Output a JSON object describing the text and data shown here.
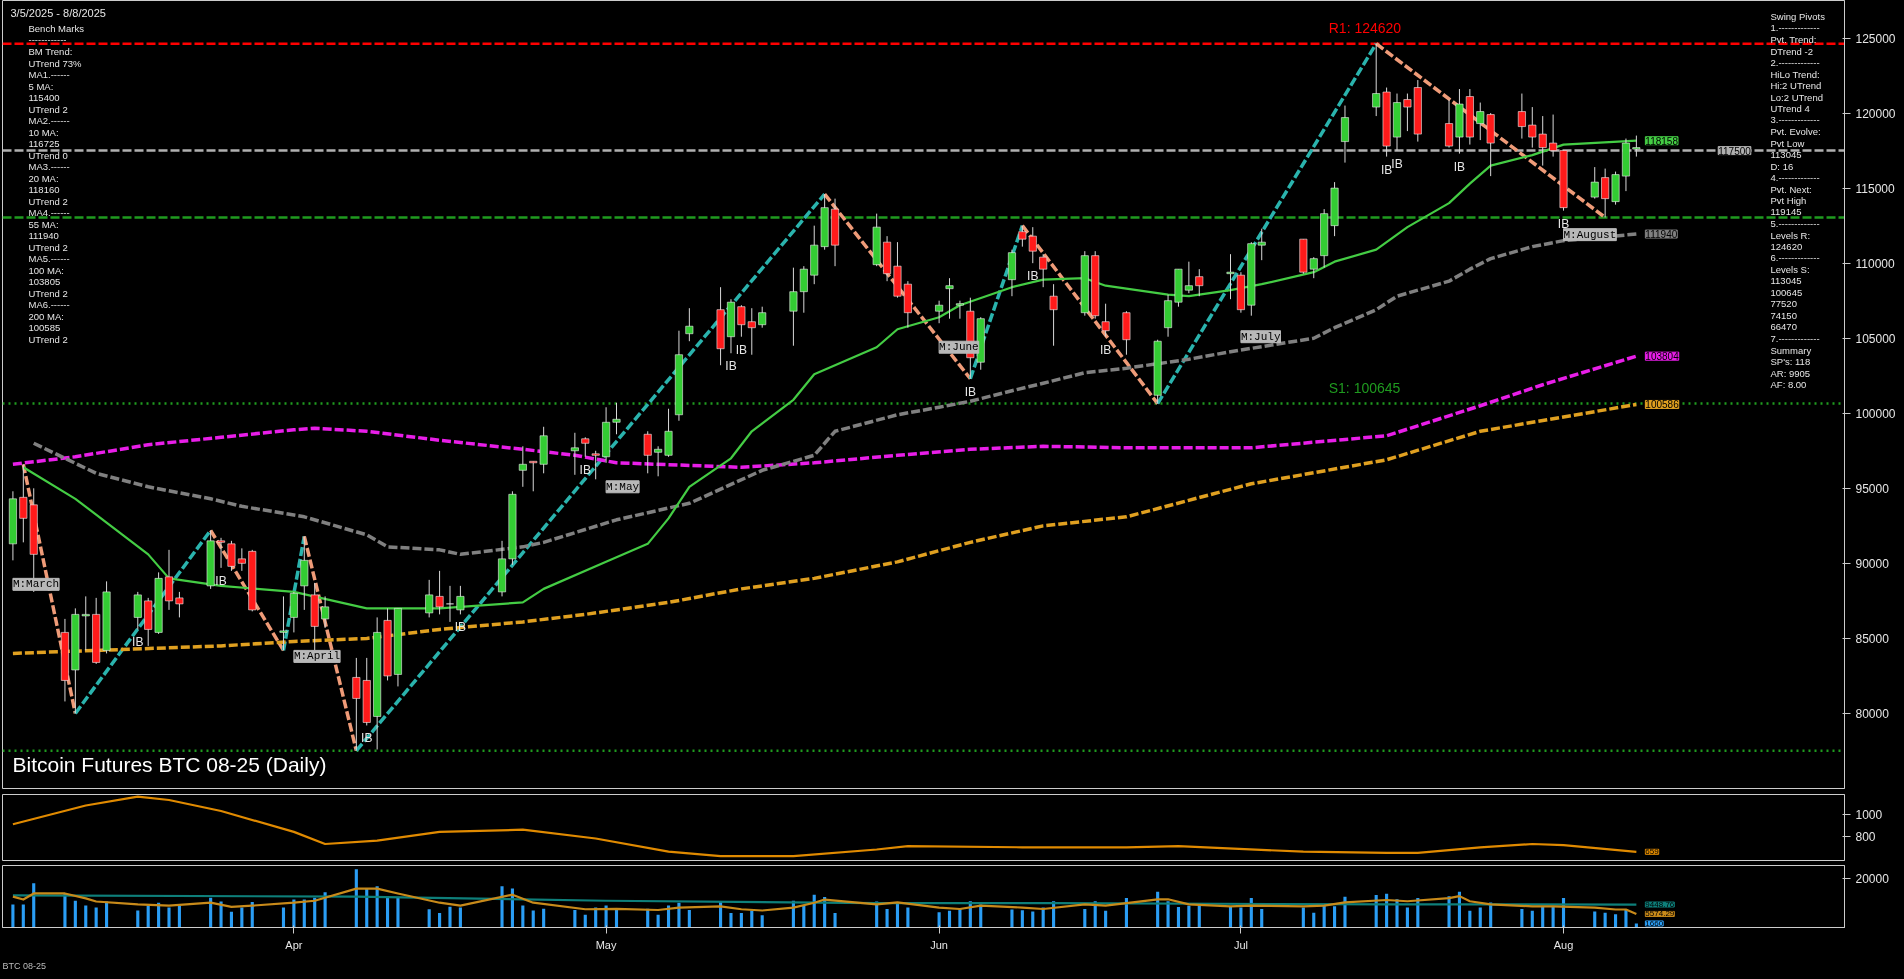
{
  "chart_data": [
    {
      "type": "candlestick",
      "title": "Bitcoin Futures BTC 08-25 (Daily)",
      "x": [
        "2025-03-05",
        "2025-03-06",
        "2025-03-07",
        "2025-03-10",
        "2025-03-11",
        "2025-03-12",
        "2025-03-13",
        "2025-03-14",
        "2025-03-17",
        "2025-03-18",
        "2025-03-19",
        "2025-03-20",
        "2025-03-21",
        "2025-03-24",
        "2025-03-25",
        "2025-03-26",
        "2025-03-27",
        "2025-03-28",
        "2025-03-31",
        "2025-04-01",
        "2025-04-02",
        "2025-04-03",
        "2025-04-04",
        "2025-04-07",
        "2025-04-08",
        "2025-04-09",
        "2025-04-10",
        "2025-04-11",
        "2025-04-14",
        "2025-04-15",
        "2025-04-16",
        "2025-04-17",
        "2025-04-21",
        "2025-04-22",
        "2025-04-23",
        "2025-04-24",
        "2025-04-25",
        "2025-04-28",
        "2025-04-29",
        "2025-04-30",
        "2025-05-01",
        "2025-05-02",
        "2025-05-05",
        "2025-05-06",
        "2025-05-07",
        "2025-05-08",
        "2025-05-09",
        "2025-05-12",
        "2025-05-13",
        "2025-05-14",
        "2025-05-15",
        "2025-05-16",
        "2025-05-19",
        "2025-05-20",
        "2025-05-21",
        "2025-05-22",
        "2025-05-23",
        "2025-05-27",
        "2025-05-28",
        "2025-05-29",
        "2025-05-30",
        "2025-06-02",
        "2025-06-03",
        "2025-06-04",
        "2025-06-05",
        "2025-06-06",
        "2025-06-09",
        "2025-06-10",
        "2025-06-11",
        "2025-06-12",
        "2025-06-13",
        "2025-06-16",
        "2025-06-17",
        "2025-06-18",
        "2025-06-20",
        "2025-06-23",
        "2025-06-24",
        "2025-06-25",
        "2025-06-26",
        "2025-06-27",
        "2025-06-30",
        "2025-07-01",
        "2025-07-02",
        "2025-07-03",
        "2025-07-07",
        "2025-07-08",
        "2025-07-09",
        "2025-07-10",
        "2025-07-11",
        "2025-07-14",
        "2025-07-15",
        "2025-07-16",
        "2025-07-17",
        "2025-07-18",
        "2025-07-21",
        "2025-07-22",
        "2025-07-23",
        "2025-07-24",
        "2025-07-25",
        "2025-07-28",
        "2025-07-29",
        "2025-07-30",
        "2025-07-31",
        "2025-08-01",
        "2025-08-04",
        "2025-08-05",
        "2025-08-06",
        "2025-08-07",
        "2025-08-08"
      ],
      "ohlc": [
        [
          91300,
          94800,
          90200,
          94300
        ],
        [
          94400,
          96600,
          91400,
          93000
        ],
        [
          93900,
          95000,
          88100,
          90600
        ],
        [
          85400,
          86300,
          80800,
          82200
        ],
        [
          82900,
          87000,
          80000,
          86600
        ],
        [
          86500,
          87800,
          84200,
          86600
        ],
        [
          86600,
          87700,
          83300,
          83400
        ],
        [
          84200,
          88800,
          84000,
          88100
        ],
        [
          86400,
          88100,
          85600,
          87900
        ],
        [
          87500,
          87700,
          84500,
          85600
        ],
        [
          85400,
          89400,
          85300,
          89000
        ],
        [
          89100,
          90900,
          86900,
          87500
        ],
        [
          87700,
          88100,
          86400,
          87300
        ],
        [
          88500,
          92200,
          88300,
          91500
        ],
        [
          91500,
          91700,
          89700,
          91400
        ],
        [
          91300,
          91500,
          89500,
          89800
        ],
        [
          90300,
          91000,
          89500,
          90000
        ],
        [
          90800,
          90900,
          86800,
          86900
        ],
        [
          85400,
          87800,
          84200,
          85500
        ],
        [
          86400,
          88100,
          85400,
          88000
        ],
        [
          88500,
          91800,
          86900,
          90200
        ],
        [
          87900,
          88700,
          84200,
          85800
        ],
        [
          86300,
          87800,
          85700,
          87100
        ],
        [
          82400,
          83700,
          77520,
          81000
        ],
        [
          82200,
          83700,
          79200,
          79400
        ],
        [
          79800,
          86400,
          77600,
          85400
        ],
        [
          86200,
          87000,
          82200,
          82500
        ],
        [
          82600,
          87000,
          81800,
          87000
        ],
        [
          86700,
          88900,
          86400,
          87900
        ],
        [
          87800,
          89500,
          86600,
          87100
        ],
        [
          87300,
          88500,
          86100,
          87300
        ],
        [
          86900,
          88500,
          86600,
          87800
        ],
        [
          88100,
          91500,
          87800,
          90300
        ],
        [
          90300,
          94800,
          89900,
          94600
        ],
        [
          96200,
          97800,
          95100,
          96600
        ],
        [
          96800,
          96800,
          94800,
          96700
        ],
        [
          96600,
          99100,
          96000,
          98500
        ],
        [
          97500,
          98700,
          95900,
          97700
        ],
        [
          98300,
          98400,
          97100,
          98000
        ],
        [
          97300,
          97500,
          95600,
          97200
        ],
        [
          97100,
          100400,
          96700,
          99400
        ],
        [
          99400,
          100700,
          98600,
          99600
        ],
        [
          98600,
          98800,
          96000,
          97200
        ],
        [
          97400,
          97800,
          95800,
          97600
        ],
        [
          97200,
          100300,
          97100,
          98800
        ],
        [
          99900,
          105500,
          99500,
          103900
        ],
        [
          105300,
          107000,
          104800,
          105800
        ],
        [
          106900,
          108400,
          103200,
          104300
        ],
        [
          105100,
          107600,
          104000,
          107400
        ],
        [
          107100,
          107200,
          105100,
          105900
        ],
        [
          106100,
          107000,
          103900,
          105700
        ],
        [
          105900,
          107100,
          105700,
          106700
        ],
        [
          106800,
          109700,
          104500,
          108100
        ],
        [
          108100,
          109800,
          106700,
          109600
        ],
        [
          109200,
          112500,
          108600,
          111200
        ],
        [
          111100,
          114600,
          110900,
          113700
        ],
        [
          113600,
          114300,
          109800,
          111200
        ],
        [
          109900,
          113300,
          109800,
          112400
        ],
        [
          111400,
          111800,
          108800,
          109300
        ],
        [
          109800,
          111400,
          107700,
          107800
        ],
        [
          108600,
          108800,
          105700,
          106700
        ],
        [
          106800,
          107500,
          106000,
          107200
        ],
        [
          108300,
          109000,
          106300,
          108500
        ],
        [
          107200,
          107500,
          106300,
          107300
        ],
        [
          106800,
          107700,
          102300,
          103700
        ],
        [
          103400,
          106400,
          102900,
          106300
        ],
        [
          108900,
          110900,
          107800,
          110700
        ],
        [
          112100,
          112500,
          111100,
          111600
        ],
        [
          111800,
          112400,
          110000,
          110800
        ],
        [
          110400,
          110600,
          108400,
          109600
        ],
        [
          107800,
          108600,
          104500,
          106900
        ],
        [
          106700,
          110800,
          106500,
          110500
        ],
        [
          110500,
          110800,
          106300,
          106500
        ],
        [
          106100,
          107300,
          105100,
          105500
        ],
        [
          106700,
          106800,
          103900,
          104900
        ],
        [
          101200,
          104900,
          100645,
          104800
        ],
        [
          105700,
          107900,
          105100,
          107500
        ],
        [
          107400,
          109600,
          107100,
          109600
        ],
        [
          108200,
          110100,
          108000,
          108500
        ],
        [
          109100,
          109600,
          107800,
          108500
        ],
        [
          109300,
          110600,
          107600,
          109400
        ],
        [
          109200,
          109400,
          106700,
          106900
        ],
        [
          107200,
          111400,
          106500,
          111300
        ],
        [
          111200,
          112300,
          110200,
          111400
        ],
        [
          111600,
          111600,
          109300,
          109400
        ],
        [
          109600,
          110400,
          109000,
          110300
        ],
        [
          110500,
          113600,
          109700,
          113300
        ],
        [
          112500,
          115400,
          111800,
          115000
        ],
        [
          118100,
          120500,
          116700,
          119700
        ],
        [
          120400,
          124620,
          119800,
          121300
        ],
        [
          121400,
          121700,
          117100,
          117800
        ],
        [
          118400,
          121300,
          117500,
          120700
        ],
        [
          120900,
          121300,
          118800,
          120400
        ],
        [
          121700,
          122200,
          118100,
          118600
        ],
        [
          119300,
          120900,
          117700,
          117800
        ],
        [
          118400,
          121600,
          117300,
          120600
        ],
        [
          121100,
          121600,
          117900,
          118400
        ],
        [
          119300,
          120700,
          118200,
          120100
        ],
        [
          119900,
          120000,
          115800,
          118000
        ],
        [
          120100,
          121300,
          118300,
          119100
        ],
        [
          119200,
          120400,
          117700,
          118400
        ],
        [
          118600,
          119800,
          116500,
          117700
        ],
        [
          118000,
          119900,
          117100,
          117500
        ],
        [
          117500,
          117500,
          113500,
          113700
        ],
        [
          114400,
          116400,
          114300,
          115400
        ],
        [
          115700,
          116300,
          113045,
          114300
        ],
        [
          114100,
          116100,
          113900,
          115900
        ],
        [
          115800,
          118300,
          114800,
          118000
        ],
        [
          117600,
          118500,
          117100,
          117700
        ]
      ],
      "series": [
        {
          "type": "line",
          "color": "#ef9b78",
          "line_style": "dashed",
          "x": [
            "2025-03-06",
            "2025-03-11"
          ],
          "values": [
            96600,
            80000
          ]
        },
        {
          "type": "line",
          "color": "#2ab3ad",
          "line_style": "dashed",
          "x": [
            "2025-03-11",
            "2025-03-24"
          ],
          "values": [
            80000,
            92200
          ]
        },
        {
          "type": "line",
          "color": "#ef9b78",
          "line_style": "dashed",
          "x": [
            "2025-03-24",
            "2025-03-31"
          ],
          "values": [
            92200,
            84200
          ]
        },
        {
          "type": "line",
          "color": "#2ab3ad",
          "line_style": "dashed",
          "x": [
            "2025-03-31",
            "2025-04-02"
          ],
          "values": [
            84200,
            91800
          ]
        },
        {
          "type": "line",
          "color": "#ef9b78",
          "line_style": "dashed",
          "x": [
            "2025-04-02",
            "2025-04-07"
          ],
          "values": [
            91800,
            77520
          ]
        },
        {
          "type": "line",
          "color": "#2ab3ad",
          "line_style": "dashed",
          "x": [
            "2025-04-07",
            "2025-05-22"
          ],
          "values": [
            77520,
            114600
          ]
        },
        {
          "type": "line",
          "color": "#ef9b78",
          "line_style": "dashed",
          "x": [
            "2025-05-22",
            "2025-06-05"
          ],
          "values": [
            114600,
            102300
          ]
        },
        {
          "type": "line",
          "color": "#2ab3ad",
          "line_style": "dashed",
          "x": [
            "2025-06-05",
            "2025-06-10"
          ],
          "values": [
            102300,
            112500
          ]
        },
        {
          "type": "line",
          "color": "#ef9b78",
          "line_style": "dashed",
          "x": [
            "2025-06-10",
            "2025-06-23"
          ],
          "values": [
            112500,
            100645
          ]
        },
        {
          "type": "line",
          "color": "#2ab3ad",
          "line_style": "dashed",
          "x": [
            "2025-06-23",
            "2025-07-14"
          ],
          "values": [
            100645,
            124620
          ]
        },
        {
          "type": "line",
          "color": "#ef9b78",
          "line_style": "dashed",
          "x": [
            "2025-07-14",
            "2025-08-05"
          ],
          "values": [
            124620,
            113045
          ]
        },
        {
          "type": "line",
          "color": "#e0a020",
          "line_style": "dashed",
          "x": [
            "2025-03-05",
            "2025-03-25",
            "2025-04-01",
            "2025-04-08",
            "2025-04-15",
            "2025-04-23",
            "2025-04-29",
            "2025-05-07",
            "2025-05-14",
            "2025-05-21",
            "2025-05-29",
            "2025-06-05",
            "2025-06-12",
            "2025-06-20",
            "2025-07-02",
            "2025-07-15",
            "2025-07-24",
            "2025-08-08"
          ],
          "values": [
            84000,
            84500,
            84800,
            85000,
            85600,
            86100,
            86600,
            87400,
            88300,
            89000,
            90100,
            91400,
            92500,
            93100,
            95300,
            96900,
            98800,
            100586
          ]
        },
        {
          "type": "line",
          "color": "#e81ee8",
          "line_style": "dashed",
          "x": [
            "2025-03-05",
            "2025-03-11",
            "2025-03-18",
            "2025-03-25",
            "2025-04-01",
            "2025-04-03",
            "2025-04-08",
            "2025-04-15",
            "2025-04-23",
            "2025-04-28",
            "2025-05-02",
            "2025-05-14",
            "2025-05-21",
            "2025-05-29",
            "2025-06-05",
            "2025-06-12",
            "2025-06-20",
            "2025-07-02",
            "2025-07-15",
            "2025-07-24",
            "2025-07-30",
            "2025-08-08"
          ],
          "values": [
            96600,
            97100,
            97900,
            98400,
            98900,
            99000,
            98800,
            98200,
            97600,
            97200,
            96700,
            96400,
            96700,
            97200,
            97600,
            97800,
            97700,
            97700,
            98500,
            100500,
            101900,
            103804
          ]
        },
        {
          "type": "line",
          "color": "#808080",
          "line_style": "dashed",
          "x": [
            "2025-03-07",
            "2025-03-13",
            "2025-03-18",
            "2025-03-24",
            "2025-03-27",
            "2025-04-02",
            "2025-04-08",
            "2025-04-10",
            "2025-04-15",
            "2025-04-17",
            "2025-04-23",
            "2025-04-25",
            "2025-05-02",
            "2025-05-09",
            "2025-05-16",
            "2025-05-21",
            "2025-05-23",
            "2025-05-29",
            "2025-06-02",
            "2025-06-05",
            "2025-06-09",
            "2025-06-12",
            "2025-06-16",
            "2025-06-20",
            "2025-06-26",
            "2025-06-30",
            "2025-07-08",
            "2025-07-10",
            "2025-07-14",
            "2025-07-16",
            "2025-07-21",
            "2025-07-23",
            "2025-07-25",
            "2025-07-29",
            "2025-08-01",
            "2025-08-08"
          ],
          "values": [
            98000,
            96000,
            95100,
            94300,
            93800,
            93100,
            91900,
            91100,
            90900,
            90600,
            91100,
            91400,
            92900,
            94000,
            96200,
            97200,
            98800,
            99900,
            100400,
            100800,
            101500,
            102000,
            102700,
            103000,
            103600,
            104100,
            105000,
            105700,
            106900,
            107800,
            108800,
            109600,
            110300,
            111100,
            111500,
            111940
          ]
        },
        {
          "type": "line",
          "color": "#44cc44",
          "line_style": "solid",
          "x": [
            "2025-03-06",
            "2025-03-11",
            "2025-03-18",
            "2025-03-20",
            "2025-03-25",
            "2025-04-01",
            "2025-04-08",
            "2025-04-15",
            "2025-04-23",
            "2025-04-25",
            "2025-05-01",
            "2025-05-05",
            "2025-05-07",
            "2025-05-09",
            "2025-05-13",
            "2025-05-15",
            "2025-05-19",
            "2025-05-21",
            "2025-05-27",
            "2025-05-29",
            "2025-06-02",
            "2025-06-04",
            "2025-06-09",
            "2025-06-12",
            "2025-06-16",
            "2025-06-18",
            "2025-06-24",
            "2025-06-26",
            "2025-06-30",
            "2025-07-03",
            "2025-07-08",
            "2025-07-10",
            "2025-07-14",
            "2025-07-17",
            "2025-07-21",
            "2025-07-23",
            "2025-07-25",
            "2025-07-29",
            "2025-08-01",
            "2025-08-08"
          ],
          "values": [
            96400,
            94300,
            90600,
            89000,
            88500,
            88100,
            87000,
            87000,
            87400,
            88300,
            90100,
            91300,
            93000,
            95100,
            97000,
            98800,
            100900,
            102600,
            104400,
            105600,
            106400,
            107200,
            108400,
            108900,
            109000,
            108500,
            107900,
            107800,
            108200,
            108600,
            109400,
            110100,
            110900,
            112400,
            114000,
            115300,
            116500,
            117200,
            117900,
            118158
          ]
        }
      ],
      "ref_lines": [
        {
          "axis": "y",
          "value": 124620,
          "label": "R1: 124620",
          "color": "#ff0000",
          "line_style": "dashed"
        },
        {
          "axis": "y",
          "value": 100645,
          "label": "S1: 100645",
          "color": "#1f9a1f",
          "line_style": "dotted"
        },
        {
          "axis": "y",
          "value": 117500,
          "label": null,
          "color": "#b0b0b0",
          "line_style": "dashed"
        },
        {
          "axis": "y",
          "value": 113045,
          "label": null,
          "color": "#1f9a1f",
          "line_style": "dashed"
        },
        {
          "axis": "y",
          "value": 77520,
          "label": null,
          "color": "#1f9a1f",
          "line_style": "dotted"
        }
      ],
      "annotations": [
        "3/5/2025 - 8/8/2025",
        "Bench Marks\n------------\nBM Trend:\nUTrend 73%\nMA1.------\n5 MA:\n115400\nUTrend 2\nMA2.------\n10 MA:\n116725\nUTrend 0\nMA3.------\n20 MA:\n118160\nUTrend 2\nMA4.------\n55 MA:\n111940\nUTrend 2\nMA5.------\n100 MA:\n103805\nUTrend 2\nMA6.------\n200 MA:\n100585\nUTrend 2",
        "Swing Pivots\n1.-------------\nPvt. Trend:\nDTrend -2\n2.-------------\nHiLo Trend:\nHi:2 UTrend\nLo:2 UTrend\nUTrend 4\n3.-------------\nPvt. Evolve:\nPvt Low\n113045\nD: 16\n4.-------------\nPvt. Next:\nPvt High\n119145\n5.-------------\nLevels R:\n124620\n6.-------------\nLevels S:\n113045\n100645\n77520\n74150\n66470\n7.-------------\nSummary\nSP's: 118\nAR: 9905\nAF: 8.00",
        "M:March",
        "M:April",
        "M:May",
        "M:June",
        "M:July",
        "M:August",
        {
          "text": "IB",
          "x": "2025-03-17",
          "y": 85600
        },
        {
          "text": "IB",
          "x": "2025-03-25",
          "y": 89700
        },
        {
          "text": "IB",
          "x": "2025-04-08",
          "y": 79200
        },
        {
          "text": "IB",
          "x": "2025-04-17",
          "y": 86600
        },
        {
          "text": "IB",
          "x": "2025-04-29",
          "y": 97100
        },
        {
          "text": "IB",
          "x": "2025-05-13",
          "y": 104000
        },
        {
          "text": "IB",
          "x": "2025-05-14",
          "y": 105100
        },
        {
          "text": "IB",
          "x": "2025-06-05",
          "y": 102300
        },
        {
          "text": "IB",
          "x": "2025-06-11",
          "y": 110000
        },
        {
          "text": "IB",
          "x": "2025-06-18",
          "y": 105100
        },
        {
          "text": "IB",
          "x": "2025-07-15",
          "y": 117100
        },
        {
          "text": "IB",
          "x": "2025-07-16",
          "y": 117500
        },
        {
          "text": "IB",
          "x": "2025-07-22",
          "y": 117300
        },
        {
          "text": "IB",
          "x": "2025-08-01",
          "y": 113500
        },
        {
          "text": "118158",
          "x": "2025-08-08",
          "y": 118158
        },
        {
          "text": "117500",
          "x": "2025-08-15",
          "y": 117500
        },
        {
          "text": "111940",
          "x": "2025-08-08",
          "y": 111940
        },
        {
          "text": "103804",
          "x": "2025-08-08",
          "y": 103804
        },
        {
          "text": "100586",
          "x": "2025-08-08",
          "y": 100586
        }
      ],
      "xlim": [
        "2025-03-04",
        "2025-08-28"
      ],
      "ylim": [
        75000,
        127500
      ],
      "yticks": [
        80000,
        85000,
        90000,
        95000,
        100000,
        105000,
        110000,
        115000,
        120000,
        125000
      ],
      "tick_labels": "y"
    },
    {
      "type": "line",
      "color": "#e08a00",
      "x": [
        "2025-03-05",
        "2025-03-12",
        "2025-03-17",
        "2025-03-20",
        "2025-03-25",
        "2025-04-01",
        "2025-04-04",
        "2025-04-09",
        "2025-04-15",
        "2025-04-23",
        "2025-04-30",
        "2025-05-07",
        "2025-05-12",
        "2025-05-19",
        "2025-05-27",
        "2025-05-30",
        "2025-06-10",
        "2025-06-20",
        "2025-06-25",
        "2025-07-07",
        "2025-07-15",
        "2025-07-18",
        "2025-07-24",
        "2025-07-29",
        "2025-08-01",
        "2025-08-08"
      ],
      "values": [
        910,
        1080,
        1160,
        1130,
        1030,
        840,
        730,
        760,
        840,
        860,
        780,
        660,
        620,
        620,
        680,
        710,
        700,
        700,
        710,
        660,
        650,
        650,
        700,
        730,
        720,
        659
      ],
      "annotations": [
        {
          "text": "659",
          "x": "2025-08-08",
          "y": 659
        }
      ],
      "xlim": [
        "2025-03-04",
        "2025-08-28"
      ],
      "ylim": [
        580,
        1180
      ],
      "yticks": [
        800,
        1000
      ],
      "tick_labels": "y"
    },
    {
      "type": "bar",
      "color": "#2a9df4",
      "x": [
        "2025-03-05",
        "2025-03-06",
        "2025-03-07",
        "2025-03-10",
        "2025-03-11",
        "2025-03-12",
        "2025-03-13",
        "2025-03-14",
        "2025-03-17",
        "2025-03-18",
        "2025-03-19",
        "2025-03-20",
        "2025-03-21",
        "2025-03-24",
        "2025-03-25",
        "2025-03-26",
        "2025-03-27",
        "2025-03-28",
        "2025-03-31",
        "2025-04-01",
        "2025-04-02",
        "2025-04-03",
        "2025-04-04",
        "2025-04-07",
        "2025-04-08",
        "2025-04-09",
        "2025-04-10",
        "2025-04-11",
        "2025-04-14",
        "2025-04-15",
        "2025-04-16",
        "2025-04-17",
        "2025-04-21",
        "2025-04-22",
        "2025-04-23",
        "2025-04-24",
        "2025-04-25",
        "2025-04-28",
        "2025-04-29",
        "2025-04-30",
        "2025-05-01",
        "2025-05-02",
        "2025-05-05",
        "2025-05-06",
        "2025-05-07",
        "2025-05-08",
        "2025-05-09",
        "2025-05-12",
        "2025-05-13",
        "2025-05-14",
        "2025-05-15",
        "2025-05-16",
        "2025-05-19",
        "2025-05-20",
        "2025-05-21",
        "2025-05-22",
        "2025-05-23",
        "2025-05-27",
        "2025-05-28",
        "2025-05-29",
        "2025-05-30",
        "2025-06-02",
        "2025-06-03",
        "2025-06-04",
        "2025-06-05",
        "2025-06-06",
        "2025-06-09",
        "2025-06-10",
        "2025-06-11",
        "2025-06-12",
        "2025-06-13",
        "2025-06-16",
        "2025-06-17",
        "2025-06-18",
        "2025-06-20",
        "2025-06-23",
        "2025-06-24",
        "2025-06-25",
        "2025-06-26",
        "2025-06-27",
        "2025-06-30",
        "2025-07-01",
        "2025-07-02",
        "2025-07-03",
        "2025-07-07",
        "2025-07-08",
        "2025-07-09",
        "2025-07-10",
        "2025-07-11",
        "2025-07-14",
        "2025-07-15",
        "2025-07-16",
        "2025-07-17",
        "2025-07-18",
        "2025-07-21",
        "2025-07-22",
        "2025-07-23",
        "2025-07-24",
        "2025-07-25",
        "2025-07-28",
        "2025-07-29",
        "2025-07-30",
        "2025-07-31",
        "2025-08-01",
        "2025-08-04",
        "2025-08-05",
        "2025-08-06",
        "2025-08-07",
        "2025-08-08"
      ],
      "values": [
        9500,
        9500,
        18200,
        14000,
        11000,
        9000,
        8200,
        10700,
        7000,
        9000,
        10200,
        8200,
        9000,
        12200,
        10700,
        6500,
        8200,
        10500,
        8200,
        11500,
        11500,
        12200,
        14500,
        24000,
        16000,
        17000,
        12200,
        12200,
        7500,
        6000,
        8500,
        8200,
        17000,
        16000,
        9000,
        7000,
        7700,
        7200,
        5200,
        8200,
        9000,
        7200,
        7700,
        5200,
        9000,
        10200,
        7200,
        10500,
        6000,
        6000,
        7000,
        5000,
        11000,
        9000,
        13500,
        12500,
        6000,
        10700,
        7600,
        10300,
        8200,
        6300,
        6900,
        7600,
        10800,
        9500,
        7400,
        7100,
        6600,
        8200,
        10800,
        7600,
        10800,
        6900,
        12100,
        14700,
        10800,
        8400,
        8900,
        8900,
        8700,
        8200,
        12100,
        7600,
        8200,
        6100,
        9200,
        8700,
        12600,
        13400,
        13900,
        11600,
        8200,
        12100,
        12900,
        14700,
        6900,
        8200,
        10300,
        7600,
        6900,
        8700,
        8700,
        12100,
        6600,
        6100,
        5500,
        7400,
        1660
      ],
      "series": [
        {
          "type": "line",
          "color": "#0e7f7a",
          "line_style": "solid",
          "x": [
            "2025-03-05",
            "2025-04-07",
            "2025-05-01",
            "2025-05-27",
            "2025-06-13",
            "2025-07-15",
            "2025-08-08"
          ],
          "values": [
            13200,
            12700,
            11000,
            10000,
            10000,
            9500,
            9448.76
          ]
        },
        {
          "type": "line",
          "color": "#c88a1a",
          "line_style": "solid",
          "x": [
            "2025-03-05",
            "2025-03-06",
            "2025-03-07",
            "2025-03-10",
            "2025-03-12",
            "2025-03-13",
            "2025-03-17",
            "2025-03-20",
            "2025-03-24",
            "2025-03-26",
            "2025-03-28",
            "2025-04-01",
            "2025-04-03",
            "2025-04-07",
            "2025-04-09",
            "2025-04-11",
            "2025-04-15",
            "2025-04-17",
            "2025-04-22",
            "2025-04-24",
            "2025-04-29",
            "2025-05-02",
            "2025-05-06",
            "2025-05-08",
            "2025-05-12",
            "2025-05-14",
            "2025-05-16",
            "2025-05-19",
            "2025-05-21",
            "2025-05-22",
            "2025-05-27",
            "2025-05-29",
            "2025-06-02",
            "2025-06-04",
            "2025-06-06",
            "2025-06-10",
            "2025-06-12",
            "2025-06-16",
            "2025-06-18",
            "2025-06-23",
            "2025-06-24",
            "2025-06-26",
            "2025-06-30",
            "2025-07-02",
            "2025-07-07",
            "2025-07-09",
            "2025-07-11",
            "2025-07-15",
            "2025-07-17",
            "2025-07-21",
            "2025-07-22",
            "2025-07-23",
            "2025-07-25",
            "2025-07-29",
            "2025-07-31",
            "2025-08-04",
            "2025-08-06",
            "2025-08-07",
            "2025-08-08"
          ],
          "values": [
            12700,
            11500,
            14000,
            14000,
            12000,
            10700,
            9500,
            9000,
            10200,
            8500,
            9000,
            10200,
            11000,
            16000,
            16000,
            14000,
            10200,
            9000,
            13500,
            10200,
            7500,
            7700,
            7200,
            8200,
            8700,
            7500,
            7000,
            8200,
            10200,
            11500,
            9500,
            10300,
            8200,
            7600,
            9000,
            8200,
            7600,
            9500,
            9000,
            11600,
            11600,
            9500,
            8700,
            9000,
            8700,
            9000,
            10300,
            11300,
            10800,
            12100,
            12900,
            10800,
            9500,
            8700,
            8700,
            8200,
            7400,
            7400,
            5574.29
          ]
        }
      ],
      "annotations": [
        "BTC 08-25",
        {
          "text": "9448.76",
          "x": "2025-08-08",
          "y": 9448.76
        },
        {
          "text": "5574.29",
          "x": "2025-08-08",
          "y": 5574.29
        },
        {
          "text": "1660",
          "x": "2025-08-08",
          "y": 1660
        }
      ],
      "xlim": [
        "2025-03-04",
        "2025-08-28"
      ],
      "ylim": [
        0,
        25500
      ],
      "yticks": [
        20000
      ],
      "xticks": [
        {
          "value": "2025-04-01",
          "label": "Apr"
        },
        {
          "value": "2025-05-01",
          "label": "May"
        },
        {
          "value": "2025-06-02",
          "label": "Jun"
        },
        {
          "value": "2025-07-01",
          "label": "Jul"
        },
        {
          "value": "2025-08-01",
          "label": "Aug"
        }
      ]
    }
  ]
}
